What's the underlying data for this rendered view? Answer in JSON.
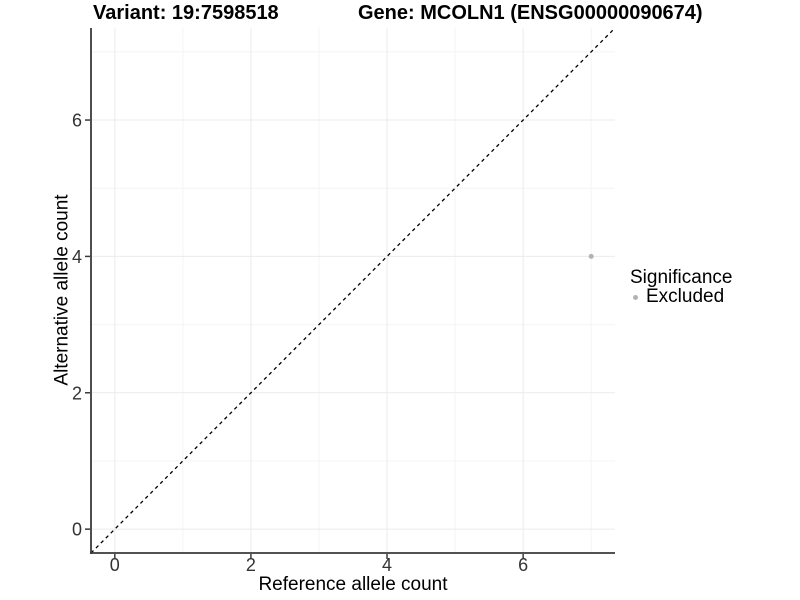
{
  "chart_data": {
    "type": "scatter",
    "title_left": "Variant: 19:7598518",
    "title_right": "Gene: MCOLN1 (ENSG00000090674)",
    "xlabel": "Reference allele count",
    "ylabel": "Alternative allele count",
    "xlim": [
      -0.35,
      7.35
    ],
    "ylim": [
      -0.35,
      7.35
    ],
    "xticks": [
      0,
      2,
      4,
      6
    ],
    "yticks": [
      0,
      2,
      4,
      6
    ],
    "x_minor_gridlines": [
      1,
      3,
      5,
      7
    ],
    "y_minor_gridlines": [
      1,
      3,
      5,
      7
    ],
    "grid": "on",
    "points": [
      {
        "x": 7,
        "y": 4,
        "series": "Excluded"
      }
    ],
    "reference_line": {
      "kind": "identity y=x",
      "style": "dashed",
      "color": "#000000"
    },
    "legend": {
      "title": "Significance",
      "position": "right",
      "items": [
        {
          "label": "Excluded",
          "marker": "circle",
          "color": "#b3b3b3"
        }
      ]
    },
    "colors": {
      "point": "#b3b3b3",
      "grid_major": "#ebebeb",
      "grid_minor": "#f4f4f4",
      "axis_line": "#3a3a3a",
      "tick_text": "#333333"
    }
  }
}
